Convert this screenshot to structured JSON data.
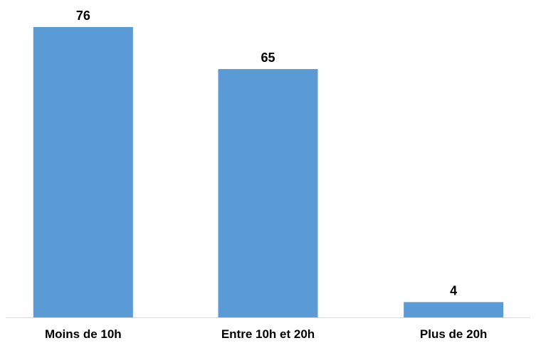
{
  "chart_data": {
    "type": "bar",
    "title": "",
    "xlabel": "",
    "ylabel": "",
    "categories": [
      "Moins de 10h",
      "Entre 10h et 20h",
      "Plus de 20h"
    ],
    "values": [
      76,
      65,
      4
    ],
    "ylim": [
      0,
      76
    ],
    "grid": false,
    "legend": "none",
    "bar_color": "#5b9bd5",
    "axis_color": "#d9d9d9"
  }
}
